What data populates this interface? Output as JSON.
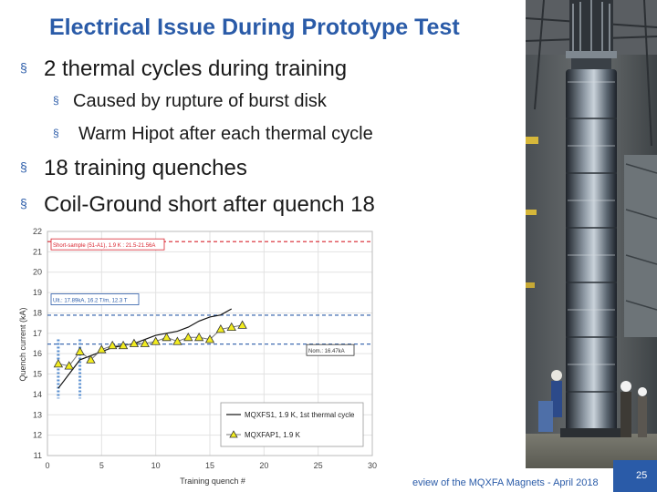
{
  "slide": {
    "title": "Electrical Issue During Prototype Test",
    "bullets": [
      "2 thermal cycles during training",
      "Caused by rupture of burst disk",
      "Warm Hipot after each thermal cycle",
      "18 training quenches",
      "Coil-Ground short after quench 18"
    ],
    "bullet_mark": "§"
  },
  "footer": {
    "text": "eview of the MQXFA Magnets - April 2018",
    "page_number": "25"
  },
  "colors": {
    "title": "#2a5ba8",
    "red_line": "#d9232e",
    "blue_line": "#2a5ba8",
    "series_black": "#111111",
    "series_yellow": "#f2ec20"
  },
  "photo": {
    "icon": "magnet-assembly-photo"
  },
  "chart_data": {
    "type": "line",
    "xlabel": "Training quench #",
    "ylabel": "Quench current (kA)",
    "xlim": [
      0,
      30
    ],
    "ylim": [
      11,
      22
    ],
    "xticks": [
      0,
      5,
      10,
      15,
      20,
      25,
      30
    ],
    "yticks": [
      11,
      12,
      13,
      14,
      15,
      16,
      17,
      18,
      19,
      20,
      21,
      22
    ],
    "grid": true,
    "annotations": [
      "Short-sample (51-A1), 1.9 K : 21.5-21.56A",
      "Ult.: 17.89kA, 16.2 T/m, 12.3 T",
      "Nom.: 16.47kA"
    ],
    "hlines": [
      {
        "y": 21.5,
        "color": "red"
      },
      {
        "y": 17.89,
        "color": "blue"
      },
      {
        "y": 16.47,
        "color": "blue"
      }
    ],
    "vlines": [
      1,
      3
    ],
    "series": [
      {
        "name": "MQXFS1, 1.9 K, 1st thermal cycle",
        "x": [
          1,
          2,
          3,
          4,
          5,
          6,
          7,
          8,
          9,
          10,
          11,
          12,
          13,
          14,
          15,
          16,
          17
        ],
        "y": [
          14.3,
          15.0,
          15.7,
          15.9,
          16.1,
          16.3,
          16.4,
          16.5,
          16.7,
          16.9,
          17.0,
          17.1,
          17.3,
          17.6,
          17.8,
          17.9,
          18.2
        ]
      },
      {
        "name": "MQXFAP1, 1.9 K",
        "x": [
          1,
          2,
          3,
          4,
          5,
          6,
          7,
          8,
          9,
          10,
          11,
          12,
          13,
          14,
          15,
          16,
          17,
          18
        ],
        "y": [
          15.5,
          15.4,
          16.1,
          15.7,
          16.2,
          16.4,
          16.4,
          16.5,
          16.5,
          16.6,
          16.8,
          16.6,
          16.8,
          16.8,
          16.7,
          17.2,
          17.3,
          17.4
        ]
      }
    ]
  }
}
